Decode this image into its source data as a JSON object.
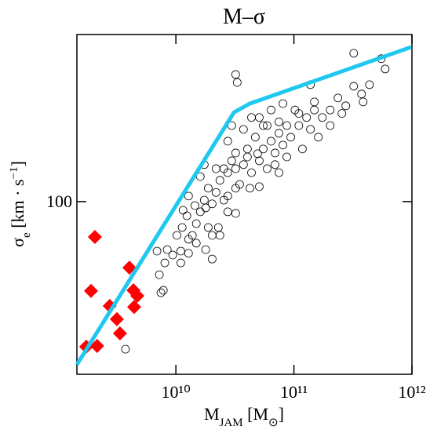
{
  "chart_data": {
    "type": "scatter",
    "title": "M–σ",
    "xlabel": [
      "M",
      "JAM",
      " [M",
      "⊙",
      "]"
    ],
    "ylabel": [
      "σ",
      "e",
      " [km · s",
      "−1",
      "]"
    ],
    "xscale": "log",
    "yscale": "log",
    "xlim": [
      1450000000,
      1000000000000
    ],
    "ylim": [
      39.8,
      243.8
    ],
    "xticks": [
      {
        "value": 10000000000,
        "label": "10¹⁰"
      },
      {
        "value": 100000000000,
        "label": "10¹¹"
      },
      {
        "value": 1000000000000,
        "label": "10¹²"
      }
    ],
    "yticks": [
      100
    ],
    "series": [
      {
        "marker": "circle",
        "color": "#000000",
        "x": [
          3740000000.0,
          7470000000.0,
          7830000000.0,
          7240000000.0,
          8060000000.0,
          6920000000.0,
          8450000000.0,
          9400000000.0,
          11000000000.0,
          12800000000.0,
          10200000000.0,
          11300000000.0,
          13800000000.0,
          14900000000.0,
          12400000000.0,
          16100000000.0,
          17900000000.0,
          14500000000.0,
          20300000000.0,
          17400000000.0,
          18800000000.0,
          21900000000.0,
          25500000000.0,
          27500000000.0,
          32100000000.0,
          27500000000.0,
          23600000000.0,
          27500000000.0,
          32100000000.0,
          37400000000.0,
          34700000000.0,
          42400000000.0,
          50900000000.0,
          43700000000.0,
          50900000000.0,
          59300000000.0,
          55000000000.0,
          64100000000.0,
          74700000000.0,
          80700000000.0,
          87100000000.0,
          69200000000.0,
          94000000000.0,
          110000000000.0,
          128000000000.0,
          138000000000.0,
          149000000000.0,
          174000000000.0,
          203000000000.0,
          236000000000.0,
          275000000000.0,
          321000000000.0,
          374000000000.0,
          386000000000.0,
          437000000000.0,
          550000000000.0,
          593000000000.0,
          321000000000.0,
          138000000000.0,
          32100000000.0,
          33100000000.0,
          29700000000.0,
          37400000000.0,
          43700000000.0,
          50900000000.0,
          64100000000.0,
          74700000000.0,
          80700000000.0,
          102000000000.0,
          110000000000.0,
          59300000000.0,
          20300000000.0,
          22900000000.0,
          14900000000.0,
          12800000000.0,
          20300000000.0,
          11000000000.0,
          17900000000.0,
          25500000000.0,
          29700000000.0,
          40400000000.0,
          47100000000.0,
          55000000000.0,
          27500000000.0,
          32100000000.0,
          69200000000.0,
          87100000000.0,
          74700000000.0,
          118000000000.0,
          161000000000.0,
          203000000000.0,
          255000000000.0,
          149000000000.0,
          17400000000.0,
          16100000000.0,
          21900000000.0,
          12800000000.0,
          11500000000.0,
          18800000000.0,
          23600000000.0,
          32100000000.0,
          40400000000.0,
          49300000000.0
        ],
        "values": [
          45.5,
          61.5,
          62.3,
          67.7,
          72.1,
          76.8,
          77.4,
          75.2,
          76.8,
          75.9,
          83.5,
          87.1,
          83.5,
          88.9,
          92.7,
          94.7,
          96.7,
          97.9,
          98.8,
          100.8,
          107.4,
          105,
          100.8,
          94.7,
          93.9,
          103,
          112,
          116.7,
          119.2,
          121.8,
          109.6,
          107.4,
          108.3,
          116.7,
          124.3,
          119.2,
          132.4,
          138,
          144,
          135.2,
          126.9,
          121.8,
          141,
          150,
          156.6,
          147,
          170.2,
          156.6,
          163,
          173.8,
          166.7,
          185,
          177.5,
          170.2,
          186.6,
          214.3,
          202.9,
          220.6,
          186.6,
          197,
          188.8,
          150,
          147,
          156.6,
          156.6,
          163,
          153,
          168.7,
          163,
          160,
          150,
          83.5,
          87.1,
          80.1,
          81.8,
          73.6,
          72.1,
          77.4,
          119.2,
          124.3,
          132.4,
          141,
          150,
          138,
          129.6,
          129.6,
          150,
          116.7,
          132.4,
          141,
          150,
          160,
          163,
          121.8,
          114.3,
          119.2,
          103,
          95.5,
          87.1,
          83.5,
          107.4,
          126.9,
          129.1
        ]
      },
      {
        "marker": "diamond",
        "color": "#ff0000",
        "x": [
          2060000000.0,
          1910000000.0,
          4040000000.0,
          2750000000.0,
          4370000000.0,
          4710000000.0,
          4430000000.0,
          3160000000.0,
          3360000000.0,
          1740000000.0,
          2150000000.0
        ],
        "values": [
          82.8,
          62.1,
          70.3,
          57.3,
          62.3,
          60.5,
          57.0,
          53.4,
          49.5,
          46.1,
          46.3
        ]
      },
      {
        "marker": "line",
        "color": "#1ec8f0",
        "x": [
          1450000000.0,
          31100000000.0,
          42400000000.0,
          985000000000.0
        ],
        "values": [
          41.9,
          161,
          168.7,
          228
        ]
      }
    ]
  }
}
